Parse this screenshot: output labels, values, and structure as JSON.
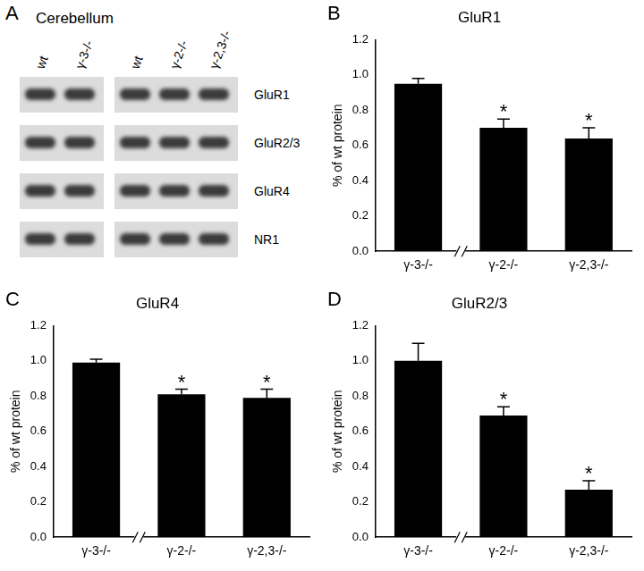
{
  "blot": {
    "panel": "A",
    "title": "Cerebellum",
    "groups": [
      [
        "wt",
        "γ-3-/-"
      ],
      [
        "wt",
        "γ-2-/-",
        "γ-2,3-/-"
      ]
    ],
    "rows": [
      "GluR1",
      "GluR2/3",
      "GluR4",
      "NR1"
    ]
  },
  "chart_data": [
    {
      "panel": "B",
      "type": "bar",
      "title": "GluR1",
      "y_label": "% of wt protein",
      "categories": [
        "γ-3-/-",
        "γ-2-/-",
        "γ-2,3-/-"
      ],
      "values": [
        0.95,
        0.7,
        0.64
      ],
      "errors": [
        0.03,
        0.05,
        0.06
      ],
      "color": "#000000",
      "annotations": [
        {
          "category": "γ-2-/-",
          "text": "*"
        },
        {
          "category": "γ-2,3-/-",
          "text": "*"
        }
      ],
      "ylim": [
        0,
        1.2
      ],
      "yticks": [
        {
          "value": 0,
          "label": "0.0"
        },
        0.2,
        0.4,
        0.6,
        0.8,
        {
          "value": 1,
          "label": "1.0"
        },
        1.2
      ],
      "grid": false
    },
    {
      "panel": "C",
      "type": "bar",
      "title": "GluR4",
      "y_label": "% of wt protein",
      "categories": [
        "γ-3-/-",
        "γ-2-/-",
        "γ-2,3-/-"
      ],
      "values": [
        0.99,
        0.81,
        0.79
      ],
      "errors": [
        0.02,
        0.03,
        0.05
      ],
      "color": "#000000",
      "annotations": [
        {
          "category": "γ-2-/-",
          "text": "*"
        },
        {
          "category": "γ-2,3-/-",
          "text": "*"
        }
      ],
      "ylim": [
        0,
        1.2
      ],
      "yticks": [
        {
          "value": 0,
          "label": "0.0"
        },
        0.2,
        0.4,
        0.6,
        0.8,
        {
          "value": 1,
          "label": "1.0"
        },
        1.2
      ],
      "grid": false
    },
    {
      "panel": "D",
      "type": "bar",
      "title": "GluR2/3",
      "y_label": "% of wt protein",
      "categories": [
        "γ-3-/-",
        "γ-2-/-",
        "γ-2,3-/-"
      ],
      "values": [
        1.0,
        0.69,
        0.27
      ],
      "errors": [
        0.1,
        0.05,
        0.05
      ],
      "color": "#000000",
      "annotations": [
        {
          "category": "γ-2-/-",
          "text": "*"
        },
        {
          "category": "γ-2,3-/-",
          "text": "*"
        }
      ],
      "ylim": [
        0,
        1.2
      ],
      "yticks": [
        {
          "value": 0,
          "label": "0.0"
        },
        0.2,
        0.4,
        0.6,
        0.8,
        {
          "value": 1,
          "label": "1.0"
        },
        1.2
      ],
      "grid": false
    }
  ]
}
